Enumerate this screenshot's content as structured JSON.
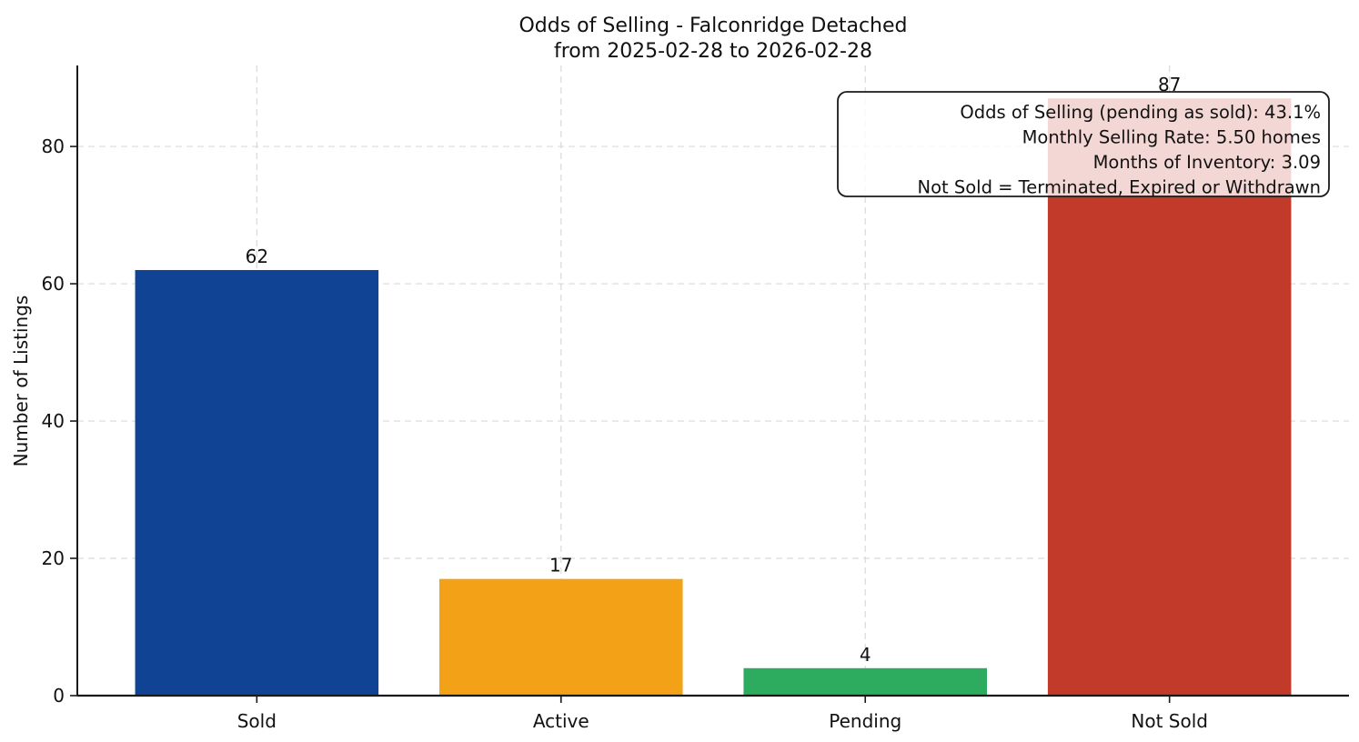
{
  "chart_data": {
    "type": "bar",
    "title": "Odds of Selling - Falconridge Detached",
    "subtitle": "from 2025-02-28 to 2026-02-28",
    "categories": [
      "Sold",
      "Active",
      "Pending",
      "Not Sold"
    ],
    "values": [
      62,
      17,
      4,
      87
    ],
    "bar_colors": [
      "#114394",
      "#f3a218",
      "#2dab5f",
      "#c23b2a"
    ],
    "value_label_color": "#111111",
    "xlabel": "",
    "ylabel": "Number of Listings",
    "ylim": [
      0,
      91.8
    ],
    "yticks": [
      0,
      20,
      40,
      60,
      80
    ],
    "grid": true,
    "grid_style": "dashed",
    "legend": "none",
    "annotation": {
      "position": "top-right",
      "text_align": "right",
      "lines": [
        "Odds of Selling (pending as sold): 43.1%",
        "Monthly Selling Rate: 5.50 homes",
        "Months of Inventory: 3.09",
        "Not Sold = Terminated, Expired or Withdrawn"
      ]
    }
  },
  "colors": {
    "background": "#ffffff",
    "text": "#111111",
    "grid": "#d9d9d9",
    "spine": "#1a1a1a",
    "annotation_border": "#1a1a1a",
    "annotation_fill": "#ffffff"
  }
}
